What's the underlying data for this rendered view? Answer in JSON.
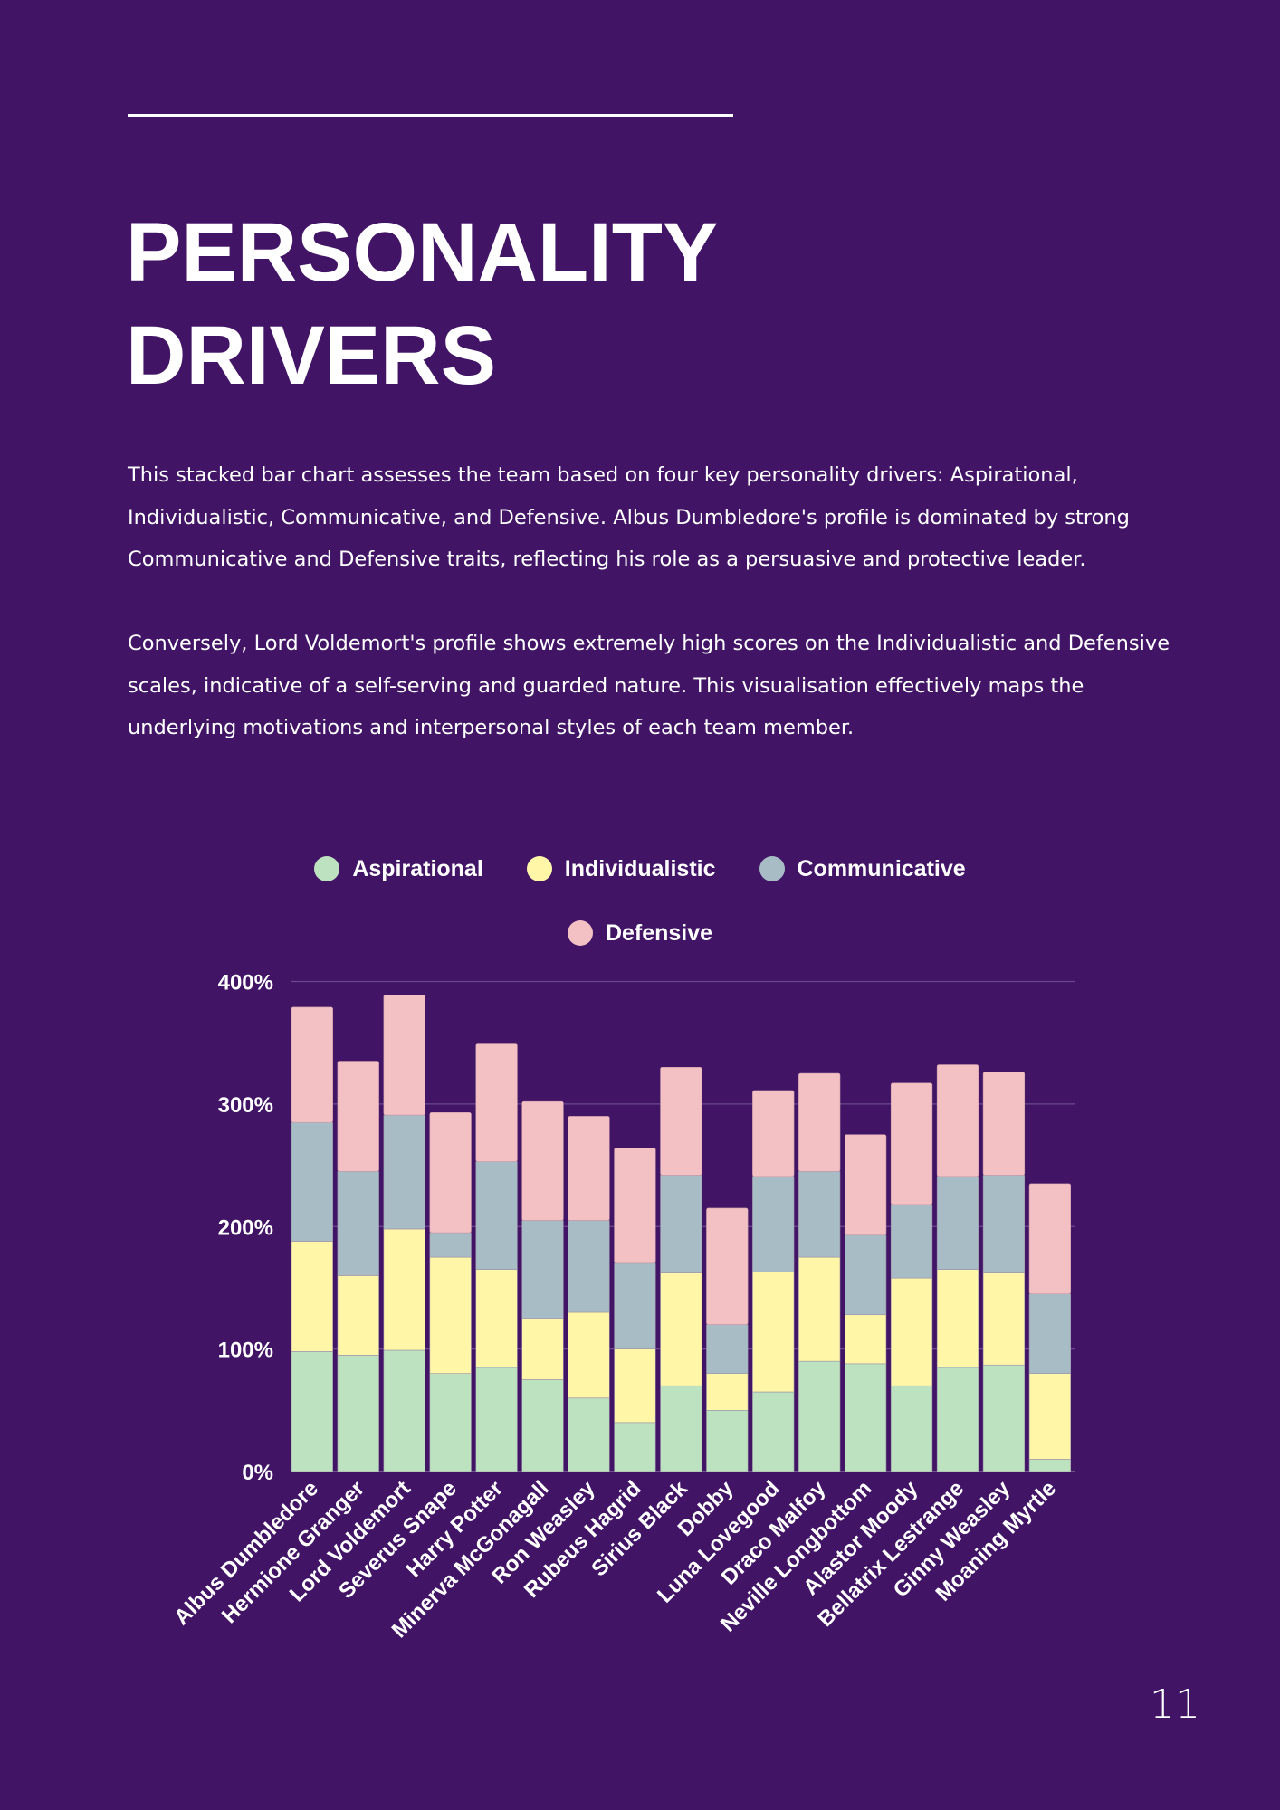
{
  "page": {
    "title_lines": [
      "PERSONALITY",
      "DRIVERS"
    ],
    "paragraphs": [
      "This stacked bar chart assesses the team based on four key personality drivers: Aspirational, Individualistic, Communicative, and Defensive. Albus Dumbledore's profile is dominated by strong Communicative and Defensive traits, reflecting his role as a persuasive and protective leader.",
      "Conversely, Lord Voldemort's profile shows extremely high scores on the Individualistic and Defensive scales, indicative of a self-serving and guarded nature. This visualisation effectively maps the underlying motivations and interpersonal styles of each team member."
    ],
    "page_number": "11"
  },
  "colors": {
    "background": "#411466",
    "text": "#ffffff",
    "gridline": "#6b4a8c"
  },
  "chart_data": {
    "type": "bar",
    "stacked": true,
    "title": "",
    "xlabel": "",
    "ylabel": "",
    "ylim": [
      0,
      400
    ],
    "y_ticks": [
      0,
      100,
      200,
      300,
      400
    ],
    "y_tick_labels": [
      "0%",
      "100%",
      "200%",
      "300%",
      "400%"
    ],
    "grid": true,
    "legend_position": "top-center",
    "categories": [
      "Albus Dumbledore",
      "Hermione Granger",
      "Lord Voldemort",
      "Severus Snape",
      "Harry Potter",
      "Minerva McGonagall",
      "Ron Weasley",
      "Rubeus Hagrid",
      "Sirius Black",
      "Dobby",
      "Luna Lovegood",
      "Draco Malfoy",
      "Neville Longbottom",
      "Alastor Moody",
      "Bellatrix Lestrange",
      "Ginny Weasley",
      "Moaning Myrtle"
    ],
    "series": [
      {
        "name": "Aspirational",
        "color": "#bde2bf",
        "values": [
          98,
          95,
          99,
          80,
          85,
          75,
          60,
          40,
          70,
          50,
          65,
          90,
          88,
          70,
          85,
          87,
          10
        ]
      },
      {
        "name": "Individualistic",
        "color": "#fff6a8",
        "values": [
          90,
          65,
          99,
          95,
          80,
          50,
          70,
          60,
          92,
          30,
          98,
          85,
          40,
          88,
          80,
          75,
          70
        ]
      },
      {
        "name": "Communicative",
        "color": "#a7bcc5",
        "values": [
          97,
          85,
          93,
          20,
          88,
          80,
          75,
          70,
          80,
          40,
          78,
          70,
          65,
          60,
          76,
          80,
          65
        ]
      },
      {
        "name": "Defensive",
        "color": "#f3c1c4",
        "values": [
          94,
          90,
          98,
          98,
          96,
          97,
          85,
          94,
          88,
          95,
          70,
          80,
          82,
          99,
          91,
          84,
          90
        ]
      }
    ]
  }
}
